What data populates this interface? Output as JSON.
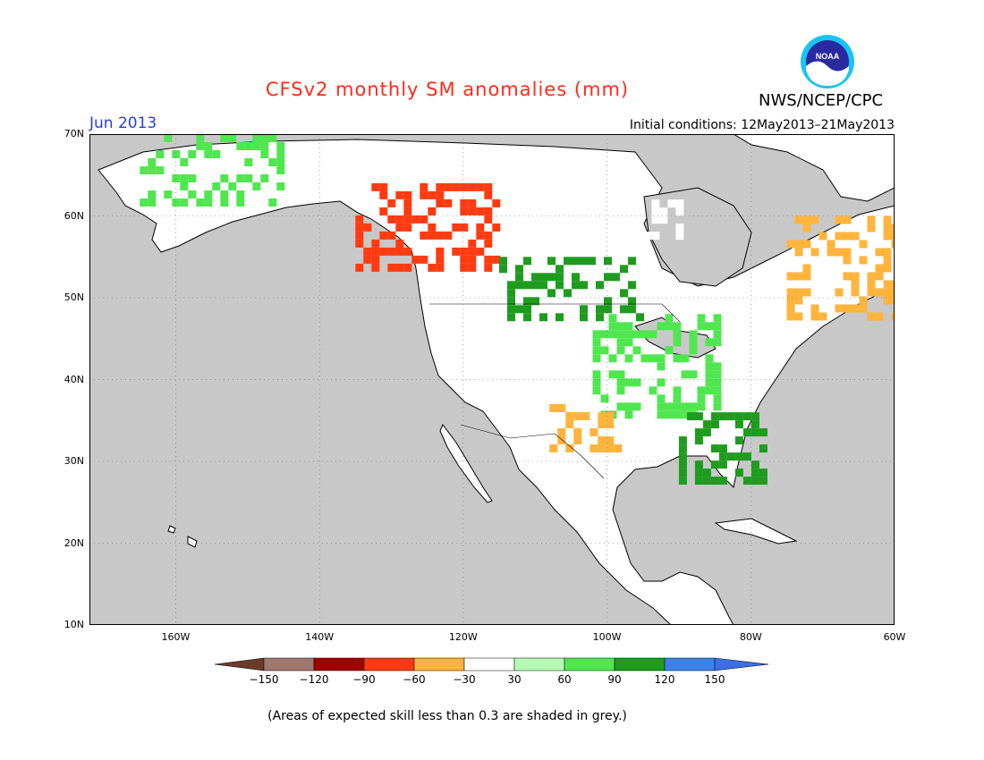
{
  "header": {
    "title": "CFSv2 monthly SM anomalies (mm)",
    "agency": "NWS/NCEP/CPC",
    "logo_text": "NOAA",
    "month": "Jun 2013",
    "initial_conditions": "Initial conditions: 12May2013–21May2013"
  },
  "map": {
    "lat_labels": [
      "70N",
      "60N",
      "50N",
      "40N",
      "30N",
      "20N",
      "10N"
    ],
    "lon_labels": [
      "160W",
      "140W",
      "120W",
      "100W",
      "80W",
      "60W"
    ],
    "lon_range": [
      -172,
      -60
    ],
    "lat_range": [
      10,
      70
    ],
    "ocean_color": "#c8c8c8",
    "land_color": "#ffffff",
    "coast_color": "#000000",
    "anomaly_regions": [
      {
        "name": "Alaska mixed",
        "value": 60,
        "lon": [
          -165,
          -145
        ],
        "lat": [
          62,
          70
        ]
      },
      {
        "name": "NW Canada dry",
        "value": -90,
        "lon": [
          -135,
          -115
        ],
        "lat": [
          54,
          64
        ]
      },
      {
        "name": "N Prairies wet",
        "value": 90,
        "lon": [
          -115,
          -95
        ],
        "lat": [
          48,
          55
        ]
      },
      {
        "name": "Great Plains wet",
        "value": 60,
        "lon": [
          -102,
          -85
        ],
        "lat": [
          36,
          48
        ]
      },
      {
        "name": "Southern Plains dry",
        "value": -60,
        "lon": [
          -108,
          -98
        ],
        "lat": [
          32,
          37
        ]
      },
      {
        "name": "Southeast wet",
        "value": 90,
        "lon": [
          -90,
          -78
        ],
        "lat": [
          28,
          36
        ]
      },
      {
        "name": "Quebec dry",
        "value": -60,
        "lon": [
          -75,
          -60
        ],
        "lat": [
          48,
          60
        ]
      },
      {
        "name": "Hudson Bay N dry",
        "value": -30,
        "lon": [
          -105,
          -90
        ],
        "lat": [
          58,
          62
        ]
      }
    ]
  },
  "colorbar": {
    "labels": [
      "−150",
      "−120",
      "−90",
      "−60",
      "−30",
      "30",
      "60",
      "90",
      "120",
      "150"
    ],
    "colors": [
      "#6b3a2a",
      "#a07870",
      "#a00000",
      "#ff3a10",
      "#ffb43c",
      "#ffffff",
      "#b4fab4",
      "#50e650",
      "#1e9c1e",
      "#3c82e6",
      "#3c6ee6"
    ]
  },
  "footnote": "(Areas of expected skill less than 0.3 are shaded in grey.)"
}
